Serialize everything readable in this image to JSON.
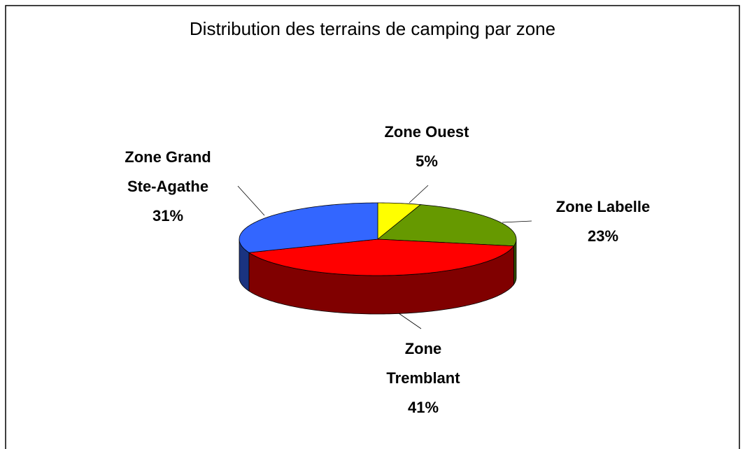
{
  "chart_data": {
    "type": "pie",
    "title": "Distribution des terrains de camping par zone",
    "categories": [
      "Zone Ouest",
      "Zone Labelle",
      "Zone Tremblant",
      "Zone Grand Ste-Agathe"
    ],
    "values": [
      5,
      23,
      41,
      31
    ],
    "value_labels": [
      "5%",
      "23%",
      "41%",
      "31%"
    ],
    "colors": [
      "#ffff00",
      "#669900",
      "#ff0000",
      "#3366ff"
    ]
  }
}
